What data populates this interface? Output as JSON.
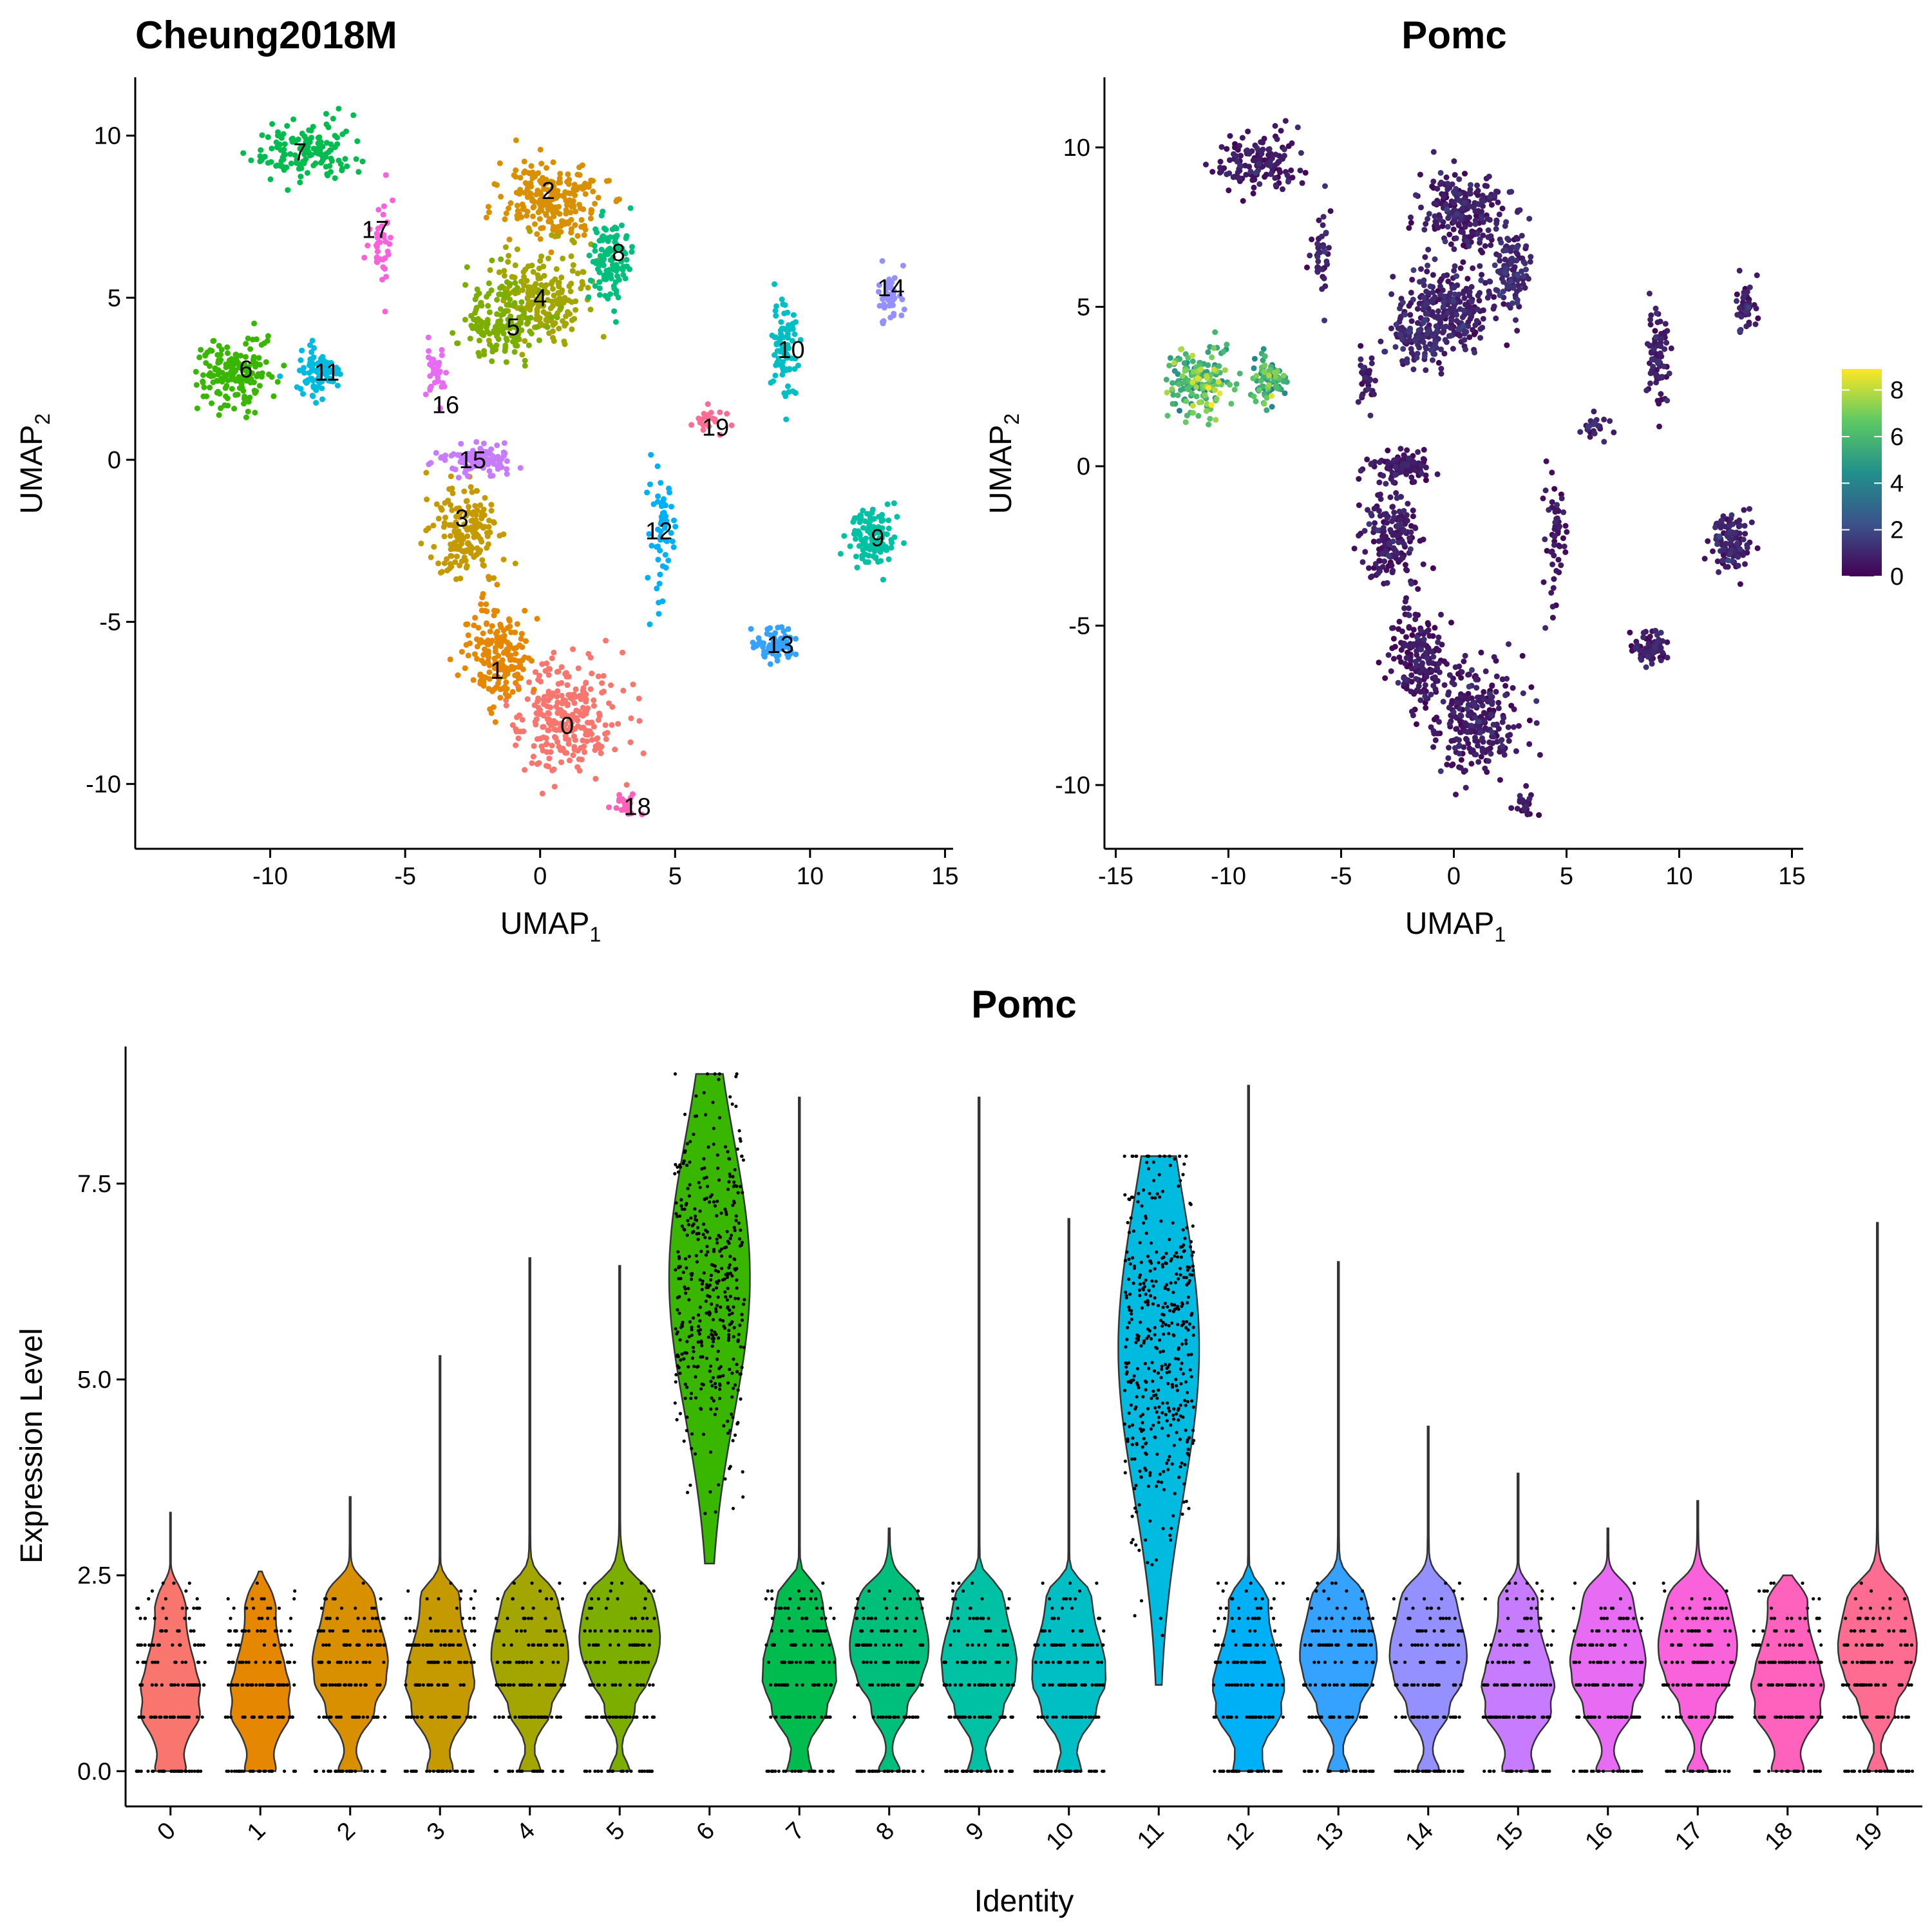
{
  "chart_data": [
    {
      "type": "scatter",
      "title": "Cheung2018M",
      "xlabel": "UMAP",
      "xlabel_sub": "1",
      "ylabel": "UMAP",
      "ylabel_sub": "2",
      "xlim": [
        -15,
        15.3
      ],
      "ylim": [
        -12,
        11.8
      ],
      "x_ticks": [
        -10,
        -5,
        0,
        5,
        10,
        15
      ],
      "y_ticks": [
        10,
        5,
        0,
        -5,
        -10
      ],
      "clusters": [
        {
          "id": "0",
          "color": "#F8766D",
          "center": [
            1.0,
            -8.0
          ],
          "spread": [
            2.0,
            1.8
          ],
          "n": 260
        },
        {
          "id": "1",
          "color": "#E58700",
          "center": [
            -1.5,
            -6.0
          ],
          "spread": [
            1.3,
            1.8
          ],
          "n": 180
        },
        {
          "id": "2",
          "color": "#D89000",
          "center": [
            0.4,
            8.0
          ],
          "spread": [
            2.4,
            1.3
          ],
          "n": 220
        },
        {
          "id": "3",
          "color": "#C49A00",
          "center": [
            -2.8,
            -2.2
          ],
          "spread": [
            1.4,
            1.6
          ],
          "n": 170
        },
        {
          "id": "4",
          "color": "#A3A500",
          "center": [
            0.0,
            5.0
          ],
          "spread": [
            2.0,
            1.6
          ],
          "n": 200
        },
        {
          "id": "5",
          "color": "#7CAE00",
          "center": [
            -1.5,
            4.3
          ],
          "spread": [
            1.6,
            1.4
          ],
          "n": 150
        },
        {
          "id": "6",
          "color": "#39B600",
          "center": [
            -11.3,
            2.7
          ],
          "spread": [
            1.5,
            1.2
          ],
          "n": 170
        },
        {
          "id": "7",
          "color": "#00BB4E",
          "center": [
            -8.5,
            9.5
          ],
          "spread": [
            1.8,
            0.9
          ],
          "n": 140
        },
        {
          "id": "8",
          "color": "#00BF7D",
          "center": [
            2.6,
            6.2
          ],
          "spread": [
            0.8,
            1.6
          ],
          "n": 110
        },
        {
          "id": "9",
          "color": "#00C1A3",
          "center": [
            12.3,
            -2.3
          ],
          "spread": [
            1.0,
            1.1
          ],
          "n": 120
        },
        {
          "id": "10",
          "color": "#00BFC4",
          "center": [
            9.1,
            3.5
          ],
          "spread": [
            0.5,
            1.6
          ],
          "n": 80
        },
        {
          "id": "11",
          "color": "#00BAE0",
          "center": [
            -8.3,
            2.7
          ],
          "spread": [
            0.8,
            0.8
          ],
          "n": 90
        },
        {
          "id": "12",
          "color": "#00B0F6",
          "center": [
            4.5,
            -2.5
          ],
          "spread": [
            0.5,
            2.2
          ],
          "n": 60
        },
        {
          "id": "13",
          "color": "#35A2FF",
          "center": [
            8.8,
            -5.7
          ],
          "spread": [
            1.0,
            0.6
          ],
          "n": 80
        },
        {
          "id": "14",
          "color": "#9590FF",
          "center": [
            13.0,
            5.0
          ],
          "spread": [
            0.5,
            0.8
          ],
          "n": 45
        },
        {
          "id": "15",
          "color": "#C77CFF",
          "center": [
            -2.2,
            0.0
          ],
          "spread": [
            1.6,
            0.5
          ],
          "n": 110
        },
        {
          "id": "16",
          "color": "#E76BF3",
          "center": [
            -3.9,
            2.6
          ],
          "spread": [
            0.4,
            1.2
          ],
          "n": 35
        },
        {
          "id": "17",
          "color": "#FA62DB",
          "center": [
            -5.9,
            6.8
          ],
          "spread": [
            0.5,
            1.6
          ],
          "n": 40
        },
        {
          "id": "18",
          "color": "#FF62BC",
          "center": [
            3.2,
            -10.6
          ],
          "spread": [
            0.5,
            0.3
          ],
          "n": 25
        },
        {
          "id": "19",
          "color": "#FF6C91",
          "center": [
            6.2,
            1.2
          ],
          "spread": [
            0.7,
            0.4
          ],
          "n": 25
        }
      ],
      "cluster_labels": [
        {
          "text": "0",
          "x": 1.0,
          "y": -8.2
        },
        {
          "text": "1",
          "x": -1.6,
          "y": -6.5
        },
        {
          "text": "2",
          "x": 0.3,
          "y": 8.3
        },
        {
          "text": "3",
          "x": -2.9,
          "y": -1.8
        },
        {
          "text": "4",
          "x": 0.0,
          "y": 5.0
        },
        {
          "text": "5",
          "x": -1.0,
          "y": 4.1
        },
        {
          "text": "6",
          "x": -10.9,
          "y": 2.8
        },
        {
          "text": "7",
          "x": -8.9,
          "y": 9.5
        },
        {
          "text": "8",
          "x": 2.9,
          "y": 6.4
        },
        {
          "text": "9",
          "x": 12.5,
          "y": -2.4
        },
        {
          "text": "10",
          "x": 9.3,
          "y": 3.4
        },
        {
          "text": "11",
          "x": -7.9,
          "y": 2.7
        },
        {
          "text": "12",
          "x": 4.4,
          "y": -2.2
        },
        {
          "text": "13",
          "x": 8.9,
          "y": -5.7
        },
        {
          "text": "14",
          "x": 13.0,
          "y": 5.3
        },
        {
          "text": "15",
          "x": -2.5,
          "y": 0.0
        },
        {
          "text": "16",
          "x": -3.5,
          "y": 1.7
        },
        {
          "text": "17",
          "x": -6.1,
          "y": 7.1
        },
        {
          "text": "18",
          "x": 3.6,
          "y": -10.7
        },
        {
          "text": "19",
          "x": 6.5,
          "y": 1.0
        }
      ]
    },
    {
      "type": "scatter",
      "title": "Pomc",
      "xlabel": "UMAP",
      "xlabel_sub": "1",
      "ylabel": "UMAP",
      "ylabel_sub": "2",
      "xlim": [
        -15.5,
        15.5
      ],
      "ylim": [
        -12,
        12.2
      ],
      "x_ticks": [
        -15,
        -10,
        -5,
        0,
        5,
        10,
        15
      ],
      "y_ticks": [
        10,
        5,
        0,
        -5,
        -10
      ],
      "color_scale": "viridis",
      "colorbar": {
        "min": 0,
        "max": 8.9,
        "ticks": [
          0,
          2,
          4,
          6,
          8
        ]
      },
      "cluster_mean_expression": [
        0.6,
        0.5,
        0.7,
        0.6,
        0.8,
        1.0,
        6.3,
        0.6,
        1.0,
        0.8,
        0.7,
        5.4,
        0.5,
        0.7,
        0.8,
        0.5,
        0.7,
        0.9,
        0.6,
        0.9
      ]
    },
    {
      "type": "violin",
      "title": "Pomc",
      "xlabel": "Identity",
      "ylabel": "Expression Level",
      "ylim": [
        -0.45,
        9.25
      ],
      "y_ticks": [
        "0.0",
        "2.5",
        "5.0",
        "7.5"
      ],
      "y_tick_values": [
        0,
        2.5,
        5.0,
        7.5
      ],
      "categories": [
        "0",
        "1",
        "2",
        "3",
        "4",
        "5",
        "6",
        "7",
        "8",
        "9",
        "10",
        "11",
        "12",
        "13",
        "14",
        "15",
        "16",
        "17",
        "18",
        "19"
      ],
      "colors": [
        "#F8766D",
        "#E58700",
        "#D89000",
        "#C49A00",
        "#A3A500",
        "#7CAE00",
        "#39B600",
        "#00BB4E",
        "#00BF7D",
        "#00C1A3",
        "#00BFC4",
        "#00BAE0",
        "#00B0F6",
        "#35A2FF",
        "#9590FF",
        "#C77CFF",
        "#E76BF3",
        "#FA62DB",
        "#FF62BC",
        "#FF6C91"
      ],
      "max_values": [
        3.3,
        2.55,
        3.5,
        5.3,
        6.55,
        6.45,
        8.9,
        8.6,
        3.1,
        8.6,
        7.05,
        7.85,
        8.75,
        6.5,
        4.4,
        3.8,
        3.1,
        3.45,
        2.5,
        7.0
      ],
      "min_values": [
        0,
        0,
        0,
        0,
        0,
        0,
        2.65,
        0,
        0,
        0,
        0,
        1.1,
        0,
        0,
        0,
        0,
        0,
        0,
        0,
        0
      ],
      "median_values": [
        0.9,
        0.9,
        1.3,
        1.1,
        1.4,
        1.6,
        6.3,
        1.2,
        1.5,
        1.3,
        1.2,
        5.4,
        1.0,
        1.4,
        1.4,
        1.0,
        1.3,
        1.5,
        1.0,
        1.5
      ],
      "violin_half_widths": [
        0.38,
        0.38,
        0.45,
        0.42,
        0.45,
        0.45,
        0.45,
        0.45,
        0.45,
        0.45,
        0.45,
        0.45,
        0.45,
        0.45,
        0.45,
        0.45,
        0.45,
        0.45,
        0.45,
        0.45
      ]
    }
  ]
}
